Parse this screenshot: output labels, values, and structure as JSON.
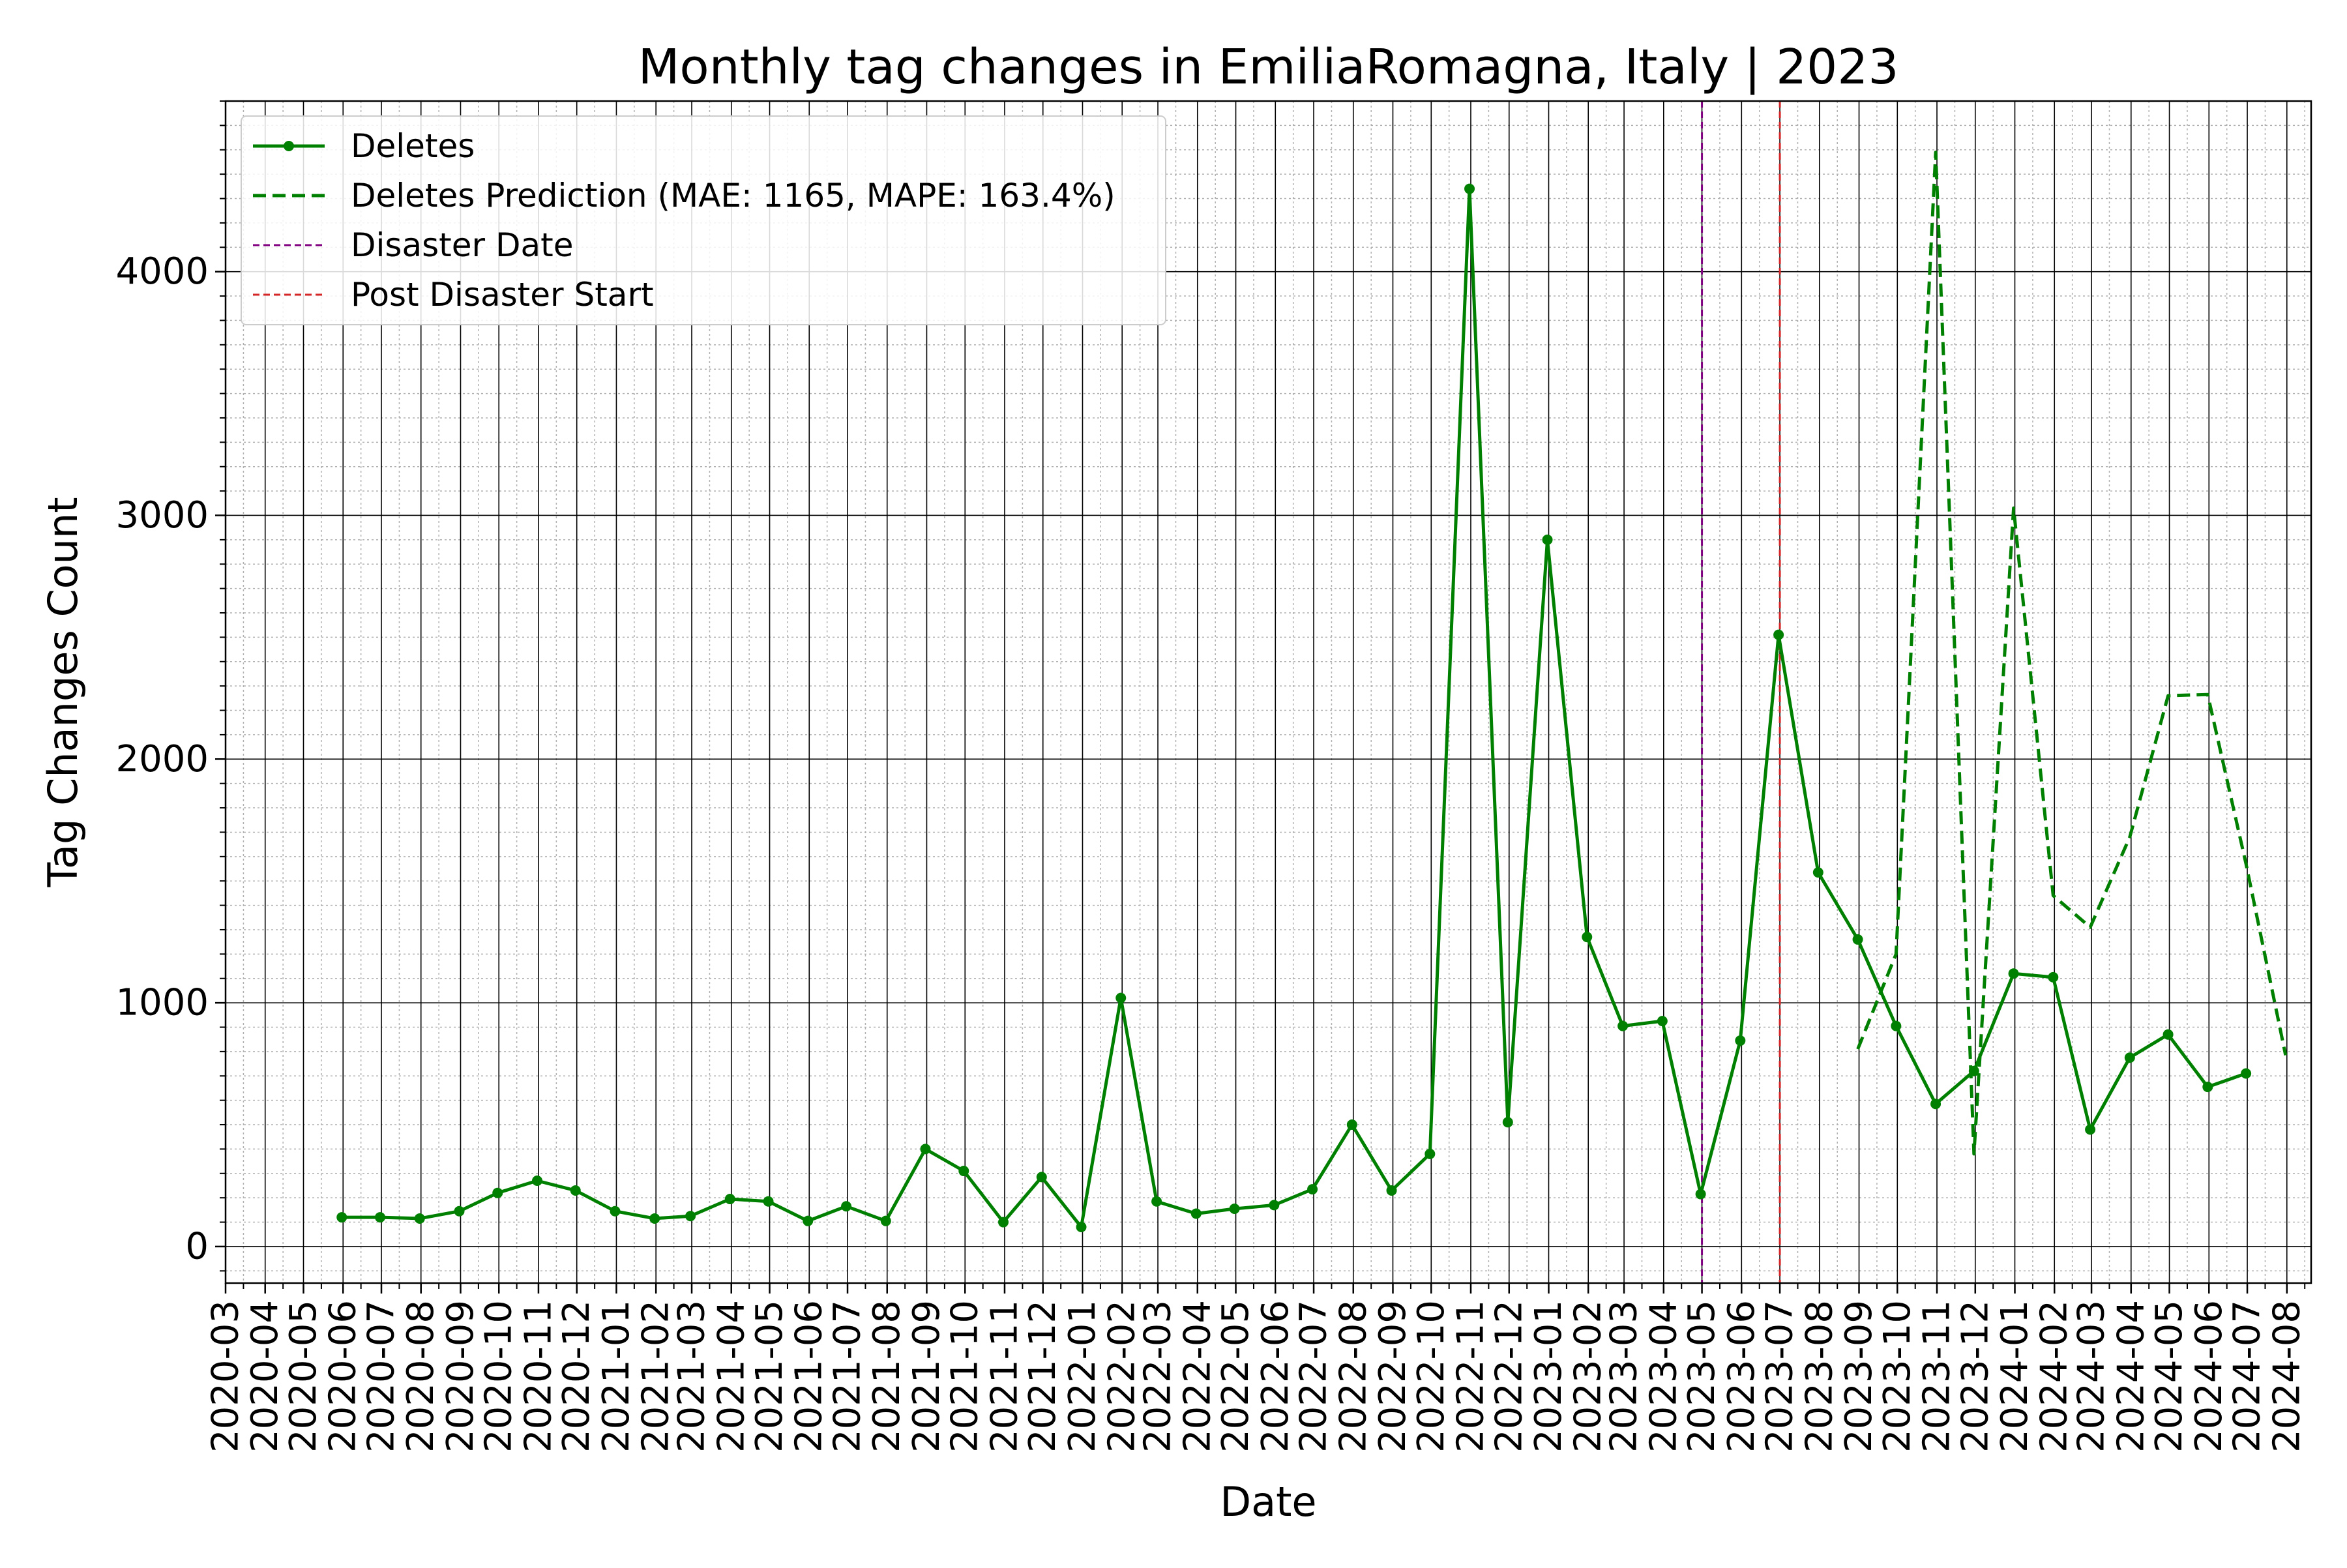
{
  "chart_data": {
    "type": "line",
    "title": "Monthly tag changes in EmiliaRomagna, Italy | 2023",
    "xlabel": "Date",
    "ylabel": "Tag Changes Count",
    "x_axis_type": "date-monthly",
    "xlim": [
      "2020-03-01",
      "2024-08-20"
    ],
    "ylim": [
      -150,
      4700
    ],
    "yticks": [
      0,
      1000,
      2000,
      3000,
      4000
    ],
    "xtick_labels": [
      "2020-03",
      "2020-04",
      "2020-05",
      "2020-06",
      "2020-07",
      "2020-08",
      "2020-09",
      "2020-10",
      "2020-11",
      "2020-12",
      "2021-01",
      "2021-02",
      "2021-03",
      "2021-04",
      "2021-05",
      "2021-06",
      "2021-07",
      "2021-08",
      "2021-09",
      "2021-10",
      "2021-11",
      "2021-12",
      "2022-01",
      "2022-02",
      "2022-03",
      "2022-04",
      "2022-05",
      "2022-06",
      "2022-07",
      "2022-08",
      "2022-09",
      "2022-10",
      "2022-11",
      "2022-12",
      "2023-01",
      "2023-02",
      "2023-03",
      "2023-04",
      "2023-05",
      "2023-06",
      "2023-07",
      "2023-08",
      "2023-09",
      "2023-10",
      "2023-11",
      "2023-12",
      "2024-01",
      "2024-02",
      "2024-03",
      "2024-04",
      "2024-05",
      "2024-06",
      "2024-07",
      "2024-08"
    ],
    "grid": true,
    "minor_grid": true,
    "legend_position": "upper-left",
    "colors": {
      "deletes": "#008000",
      "prediction": "#008000",
      "disaster": "#800080",
      "post_disaster": "#d62728",
      "major_grid": "#000000",
      "minor_grid": "#b0b0b0"
    },
    "series": [
      {
        "name": "Deletes",
        "style": "solid-marker",
        "x": [
          "2020-05-31",
          "2020-06-30",
          "2020-07-31",
          "2020-08-31",
          "2020-09-30",
          "2020-10-31",
          "2020-11-30",
          "2020-12-31",
          "2021-01-31",
          "2021-02-28",
          "2021-03-31",
          "2021-04-30",
          "2021-05-31",
          "2021-06-30",
          "2021-07-31",
          "2021-08-31",
          "2021-09-30",
          "2021-10-31",
          "2021-11-30",
          "2021-12-31",
          "2022-01-31",
          "2022-02-28",
          "2022-03-31",
          "2022-04-30",
          "2022-05-31",
          "2022-06-30",
          "2022-07-31",
          "2022-08-31",
          "2022-09-30",
          "2022-10-31",
          "2022-11-30",
          "2022-12-31",
          "2023-01-31",
          "2023-02-28",
          "2023-03-31",
          "2023-04-30",
          "2023-05-31",
          "2023-06-30",
          "2023-07-31",
          "2023-08-31",
          "2023-09-30",
          "2023-10-31",
          "2023-11-30",
          "2023-12-31",
          "2024-01-31",
          "2024-02-29",
          "2024-03-31",
          "2024-04-30",
          "2024-05-31",
          "2024-06-30"
        ],
        "values": [
          120,
          120,
          115,
          145,
          220,
          270,
          230,
          145,
          115,
          125,
          195,
          185,
          105,
          165,
          105,
          400,
          310,
          100,
          285,
          80,
          1020,
          185,
          135,
          155,
          170,
          235,
          500,
          230,
          380,
          4340,
          510,
          2900,
          1270,
          905,
          925,
          215,
          845,
          2510,
          1535,
          1260,
          905,
          585,
          720,
          1120,
          1105,
          480,
          775,
          870,
          655,
          710
        ]
      },
      {
        "name": "Deletes Prediction (MAE: 1165, MAPE: 163.4%)",
        "style": "dashed",
        "x": [
          "2023-08-31",
          "2023-09-30",
          "2023-10-31",
          "2023-11-30",
          "2023-12-31",
          "2024-01-31",
          "2024-02-29",
          "2024-03-31",
          "2024-04-30",
          "2024-05-31",
          "2024-06-30",
          "2024-07-31"
        ],
        "values": [
          810,
          1200,
          4490,
          380,
          3030,
          1440,
          1310,
          1680,
          2260,
          2265,
          1570,
          785
        ]
      }
    ],
    "vlines": [
      {
        "name": "Disaster Date",
        "x": "2023-05-01"
      },
      {
        "name": "Post Disaster Start",
        "x": "2023-07-01"
      }
    ],
    "legend": [
      {
        "label": "Deletes",
        "key": "deletes"
      },
      {
        "label": "Deletes Prediction (MAE: 1165, MAPE: 163.4%)",
        "key": "prediction"
      },
      {
        "label": "Disaster Date",
        "key": "disaster"
      },
      {
        "label": "Post Disaster Start",
        "key": "post_disaster"
      }
    ]
  }
}
